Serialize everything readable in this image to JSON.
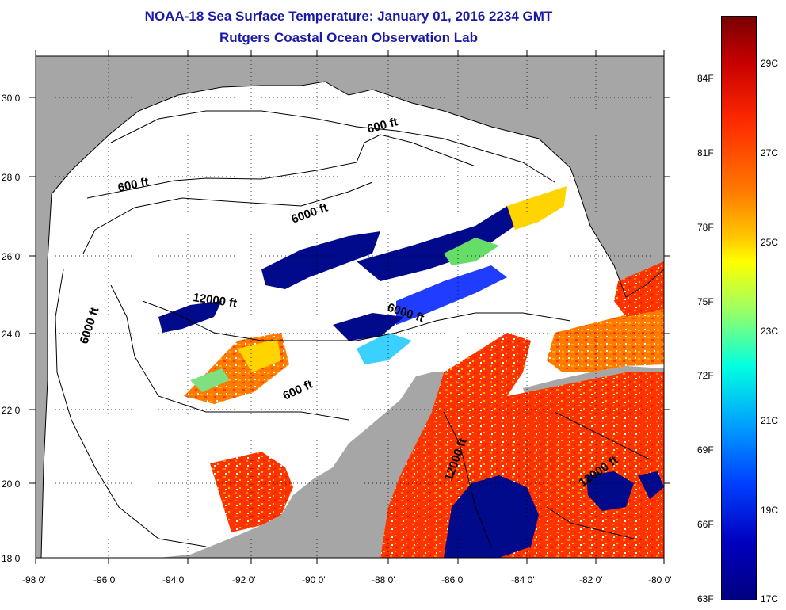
{
  "title": {
    "line1": "NOAA-18 Sea Surface Temperature:  January 01, 2016 2234 GMT",
    "line2": "Rutgers Coastal Ocean Observation Lab"
  },
  "map": {
    "lon_ticks": [
      "-98 0'",
      "-96 0'",
      "-94 0'",
      "-92 0'",
      "-90 0'",
      "-88 0'",
      "-86 0'",
      "-84 0'",
      "-82 0'",
      "-80 0'"
    ],
    "lat_ticks": [
      "30 0'",
      "28 0'",
      "26 0'",
      "24 0'",
      "22 0'",
      "20 0'",
      "18 0'"
    ],
    "contour_labels": [
      "600 ft",
      "600 ft",
      "6000 ft",
      "6000 ft",
      "12000 ft",
      "6000 ft",
      "600 ft",
      "12000 ft",
      "12000 ft"
    ],
    "colors": {
      "land": "#a6a6a6",
      "ocean_no_data": "#ffffff",
      "cold": "#000a8a",
      "warm": "#ff2a00"
    }
  },
  "colorbar": {
    "fahrenheit_labels": [
      "84F",
      "81F",
      "78F",
      "75F",
      "72F",
      "69F",
      "66F",
      "63F"
    ],
    "celsius_labels": [
      "29C",
      "27C",
      "25C",
      "23C",
      "21C",
      "19C",
      "17C"
    ]
  }
}
